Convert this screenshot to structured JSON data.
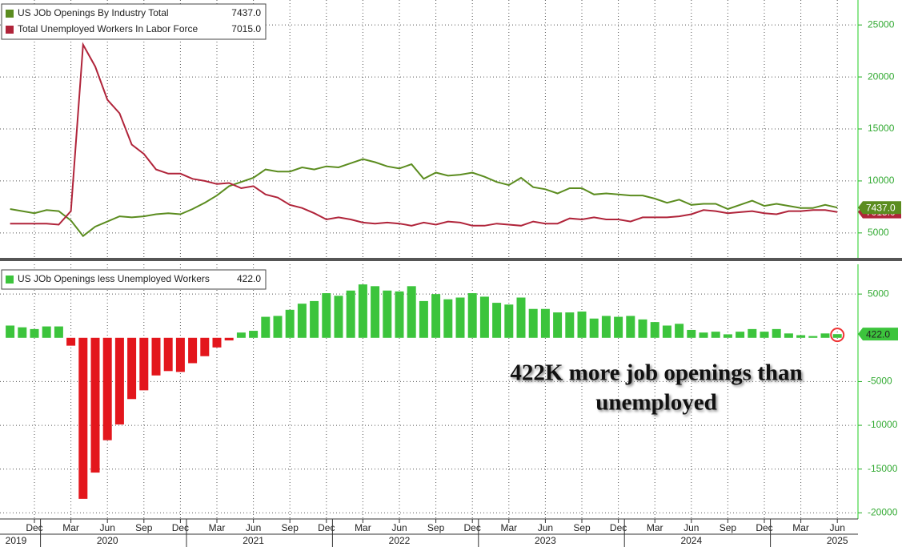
{
  "chart_data": [
    {
      "type": "line",
      "ylim": [
        2600,
        27400
      ],
      "yticks": [
        5000,
        10000,
        15000,
        20000,
        25000
      ],
      "grid": true,
      "series": [
        {
          "name": "US JOb Openings By Industry Total",
          "last_label": "7437.0",
          "color": "#5b8c1f",
          "values": [
            7300,
            7100,
            6900,
            7200,
            7100,
            6200,
            4700,
            5600,
            6100,
            6600,
            6500,
            6600,
            6800,
            6900,
            6800,
            7300,
            7900,
            8600,
            9500,
            9900,
            10300,
            11100,
            10900,
            10900,
            11300,
            11100,
            11400,
            11300,
            11700,
            12100,
            11800,
            11400,
            11200,
            11600,
            10200,
            10800,
            10500,
            10600,
            10800,
            10400,
            9900,
            9600,
            10300,
            9400,
            9200,
            8800,
            9300,
            9300,
            8700,
            8800,
            8700,
            8600,
            8600,
            8300,
            7900,
            8200,
            7700,
            7800,
            7800,
            7300,
            7700,
            8100,
            7600,
            7800,
            7600,
            7400,
            7400,
            7700,
            7437
          ]
        },
        {
          "name": "Total Unemployed Workers In Labor Force",
          "last_label": "7015.0",
          "color": "#b0243a",
          "values": [
            5900,
            5900,
            5900,
            5900,
            5800,
            7100,
            23100,
            21000,
            17800,
            16500,
            13500,
            12600,
            11100,
            10700,
            10700,
            10200,
            10000,
            9700,
            9800,
            9300,
            9500,
            8700,
            8400,
            7700,
            7400,
            6900,
            6300,
            6500,
            6300,
            6000,
            5900,
            6000,
            5900,
            5700,
            6000,
            5800,
            6100,
            6000,
            5700,
            5700,
            5900,
            5800,
            5700,
            6100,
            5900,
            5900,
            6400,
            6300,
            6500,
            6300,
            6300,
            6100,
            6500,
            6500,
            6500,
            6600,
            6800,
            7200,
            7100,
            6900,
            7000,
            7100,
            6900,
            6800,
            7100,
            7100,
            7200,
            7200,
            7015
          ]
        }
      ]
    },
    {
      "type": "bar",
      "ylim": [
        -20700,
        8400
      ],
      "yticks": [
        -20000,
        -15000,
        -10000,
        -5000,
        5000
      ],
      "grid": true,
      "series": [
        {
          "name": "US JOb Openings less Unemployed Workers",
          "last_label": "422.0",
          "color": "#3cc43c",
          "negative_color": "#e3161c",
          "values": [
            1400,
            1200,
            1000,
            1300,
            1300,
            -900,
            -18400,
            -15400,
            -11700,
            -9900,
            -7000,
            -6000,
            -4300,
            -3800,
            -3900,
            -2900,
            -2100,
            -1100,
            -300,
            600,
            800,
            2400,
            2500,
            3200,
            3900,
            4200,
            5100,
            4800,
            5400,
            6100,
            5900,
            5400,
            5300,
            5900,
            4200,
            5000,
            4400,
            4600,
            5100,
            4700,
            4000,
            3800,
            4600,
            3300,
            3300,
            2900,
            2900,
            3000,
            2200,
            2500,
            2400,
            2500,
            2100,
            1800,
            1400,
            1600,
            900,
            600,
            700,
            400,
            700,
            1000,
            700,
            1000,
            500,
            300,
            200,
            500,
            422
          ]
        }
      ],
      "annotation": [
        "422K more job openings than",
        "unemployed"
      ]
    }
  ],
  "x_axis": {
    "x": [
      "2019-10",
      "2019-11",
      "2019-12",
      "2020-01",
      "2020-02",
      "2020-03",
      "2020-04",
      "2020-05",
      "2020-06",
      "2020-07",
      "2020-08",
      "2020-09",
      "2020-10",
      "2020-11",
      "2020-12",
      "2021-01",
      "2021-02",
      "2021-03",
      "2021-04",
      "2021-05",
      "2021-06",
      "2021-07",
      "2021-08",
      "2021-09",
      "2021-10",
      "2021-11",
      "2021-12",
      "2022-01",
      "2022-02",
      "2022-03",
      "2022-04",
      "2022-05",
      "2022-06",
      "2022-07",
      "2022-08",
      "2022-09",
      "2022-10",
      "2022-11",
      "2022-12",
      "2023-01",
      "2023-02",
      "2023-03",
      "2023-04",
      "2023-05",
      "2023-06",
      "2023-07",
      "2023-08",
      "2023-09",
      "2023-10",
      "2023-11",
      "2023-12",
      "2024-01",
      "2024-02",
      "2024-03",
      "2024-04",
      "2024-05",
      "2024-06",
      "2024-07",
      "2024-08",
      "2024-09",
      "2024-10",
      "2024-11",
      "2024-12",
      "2025-01",
      "2025-02",
      "2025-03",
      "2025-04",
      "2025-05",
      "2025-06"
    ],
    "xticks": [
      {
        "value": "2019-12",
        "label": "Dec"
      },
      {
        "value": "2020-03",
        "label": "Mar"
      },
      {
        "value": "2020-06",
        "label": "Jun"
      },
      {
        "value": "2020-09",
        "label": "Sep"
      },
      {
        "value": "2020-12",
        "label": "Dec"
      },
      {
        "value": "2021-03",
        "label": "Mar"
      },
      {
        "value": "2021-06",
        "label": "Jun"
      },
      {
        "value": "2021-09",
        "label": "Sep"
      },
      {
        "value": "2021-12",
        "label": "Dec"
      },
      {
        "value": "2022-03",
        "label": "Mar"
      },
      {
        "value": "2022-06",
        "label": "Jun"
      },
      {
        "value": "2022-09",
        "label": "Sep"
      },
      {
        "value": "2022-12",
        "label": "Dec"
      },
      {
        "value": "2023-03",
        "label": "Mar"
      },
      {
        "value": "2023-06",
        "label": "Jun"
      },
      {
        "value": "2023-09",
        "label": "Sep"
      },
      {
        "value": "2023-12",
        "label": "Dec"
      },
      {
        "value": "2024-03",
        "label": "Mar"
      },
      {
        "value": "2024-06",
        "label": "Jun"
      },
      {
        "value": "2024-09",
        "label": "Sep"
      },
      {
        "value": "2024-12",
        "label": "Dec"
      },
      {
        "value": "2025-03",
        "label": "Mar"
      },
      {
        "value": "2025-06",
        "label": "Jun"
      }
    ],
    "years": [
      "2019",
      "2020",
      "2021",
      "2022",
      "2023",
      "2024",
      "2025"
    ]
  }
}
